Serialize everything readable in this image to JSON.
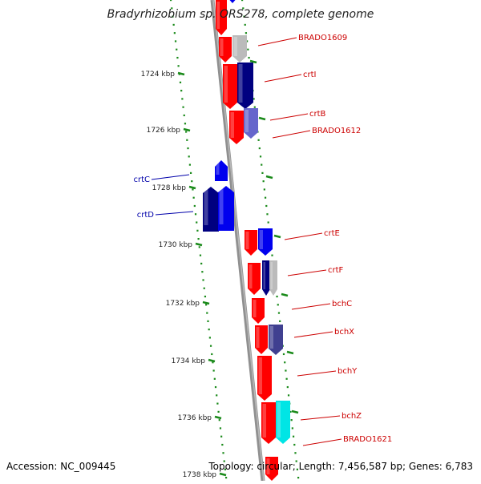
{
  "header": {
    "title": "Bradyrhizobium sp. ORS278, complete genome"
  },
  "footer": {
    "accession": "Accession: NC_009445",
    "topology": "Topology: circular; Length: 7,456,587 bp; Genes: 6,783"
  },
  "colors": {
    "backbone": "#7f7f7f",
    "ring_dots": "#1a8a1a",
    "forward_strand": "#ff0000",
    "cog_blue": "#0000ee",
    "cog_navy": "#000080",
    "cog_slate": "#6666cc",
    "cog_purple": "#404090",
    "cog_gray": "#bbbbbb",
    "cog_cyan": "#00e5e5",
    "right_label": "#cc0000",
    "left_label": "#0000aa"
  },
  "scale": {
    "ticks": [
      {
        "label": "1724 kbp",
        "kbp": 1724
      },
      {
        "label": "1726 kbp",
        "kbp": 1726
      },
      {
        "label": "1728 kbp",
        "kbp": 1728
      },
      {
        "label": "1730 kbp",
        "kbp": 1730
      },
      {
        "label": "1732 kbp",
        "kbp": 1732
      },
      {
        "label": "1734 kbp",
        "kbp": 1734
      },
      {
        "label": "1736 kbp",
        "kbp": 1736
      },
      {
        "label": "1738 kbp",
        "kbp": 1738
      }
    ]
  },
  "genes_right": [
    {
      "label": "BRADO1609"
    },
    {
      "label": "crtI"
    },
    {
      "label": "crtB"
    },
    {
      "label": "BRADO1612"
    },
    {
      "label": "crtE"
    },
    {
      "label": "crtF"
    },
    {
      "label": "bchC"
    },
    {
      "label": "bchX"
    },
    {
      "label": "bchY"
    },
    {
      "label": "bchZ"
    },
    {
      "label": "BRADO1621"
    }
  ],
  "genes_left": [
    {
      "label": "crtC"
    },
    {
      "label": "crtD"
    }
  ]
}
